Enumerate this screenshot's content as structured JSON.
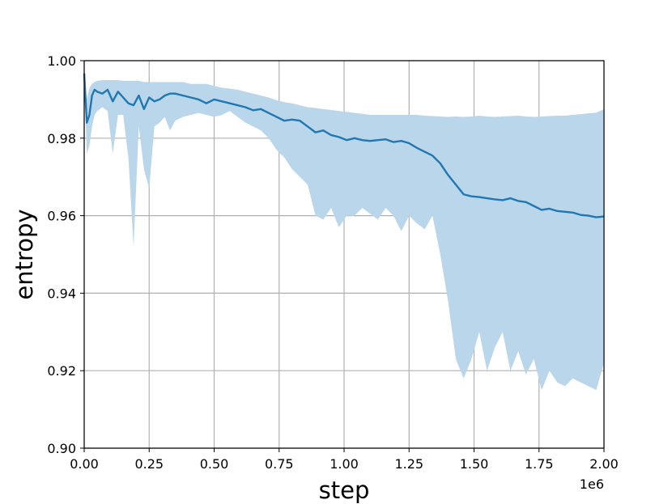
{
  "chart_data": {
    "type": "line",
    "title": "",
    "xlabel": "step",
    "ylabel": "entropy",
    "x_offset_label": "1e6",
    "xlim": [
      0.0,
      2.0
    ],
    "ylim": [
      0.9,
      1.0
    ],
    "x_ticks": [
      0.0,
      0.25,
      0.5,
      0.75,
      1.0,
      1.25,
      1.5,
      1.75,
      2.0
    ],
    "x_tick_labels": [
      "0.00",
      "0.25",
      "0.50",
      "0.75",
      "1.00",
      "1.25",
      "1.50",
      "1.75",
      "2.00"
    ],
    "y_ticks": [
      0.9,
      0.92,
      0.94,
      0.96,
      0.98,
      1.0
    ],
    "y_tick_labels": [
      "0.90",
      "0.92",
      "0.94",
      "0.96",
      "0.98",
      "1.00"
    ],
    "grid": true,
    "legend": "none",
    "colors": {
      "line": "#1f77b4",
      "band": "#bad6ea",
      "grid": "#b0b0b0"
    },
    "series": [
      {
        "x": [
          0.0,
          0.01,
          0.02,
          0.03,
          0.04,
          0.05,
          0.07,
          0.09,
          0.11,
          0.13,
          0.15,
          0.17,
          0.19,
          0.21,
          0.23,
          0.25,
          0.27,
          0.29,
          0.31,
          0.33,
          0.35,
          0.38,
          0.41,
          0.44,
          0.47,
          0.5,
          0.53,
          0.56,
          0.59,
          0.62,
          0.65,
          0.68,
          0.71,
          0.74,
          0.77,
          0.8,
          0.83,
          0.86,
          0.89,
          0.92,
          0.95,
          0.98,
          1.01,
          1.04,
          1.07,
          1.1,
          1.13,
          1.16,
          1.19,
          1.22,
          1.25,
          1.28,
          1.31,
          1.34,
          1.37,
          1.4,
          1.43,
          1.46,
          1.49,
          1.52,
          1.55,
          1.58,
          1.61,
          1.64,
          1.67,
          1.7,
          1.73,
          1.76,
          1.79,
          1.82,
          1.85,
          1.88,
          1.91,
          1.94,
          1.97,
          2.0
        ],
        "mean": [
          0.9967,
          0.984,
          0.986,
          0.991,
          0.9925,
          0.992,
          0.9915,
          0.9925,
          0.9895,
          0.992,
          0.9905,
          0.989,
          0.9885,
          0.991,
          0.9875,
          0.9905,
          0.9895,
          0.99,
          0.991,
          0.9915,
          0.9915,
          0.991,
          0.9905,
          0.99,
          0.989,
          0.99,
          0.9895,
          0.989,
          0.9885,
          0.988,
          0.9872,
          0.9875,
          0.9865,
          0.9855,
          0.9845,
          0.9848,
          0.9845,
          0.983,
          0.9815,
          0.982,
          0.9808,
          0.9803,
          0.9795,
          0.98,
          0.9795,
          0.9793,
          0.9795,
          0.9797,
          0.979,
          0.9793,
          0.9787,
          0.9775,
          0.9765,
          0.9755,
          0.9735,
          0.9705,
          0.968,
          0.9655,
          0.965,
          0.9648,
          0.9645,
          0.9642,
          0.964,
          0.9645,
          0.9638,
          0.9635,
          0.9625,
          0.9615,
          0.9618,
          0.9612,
          0.961,
          0.9608,
          0.9602,
          0.96,
          0.9596,
          0.9598
        ],
        "upper": [
          0.997,
          0.99,
          0.993,
          0.994,
          0.9945,
          0.9948,
          0.995,
          0.995,
          0.995,
          0.995,
          0.9948,
          0.9948,
          0.9948,
          0.9948,
          0.9945,
          0.9945,
          0.9945,
          0.9945,
          0.9945,
          0.9945,
          0.9945,
          0.9945,
          0.994,
          0.994,
          0.994,
          0.9935,
          0.993,
          0.9928,
          0.9925,
          0.992,
          0.9915,
          0.991,
          0.9905,
          0.9898,
          0.9893,
          0.989,
          0.9885,
          0.988,
          0.9878,
          0.9875,
          0.9873,
          0.987,
          0.9868,
          0.9865,
          0.9863,
          0.986,
          0.986,
          0.986,
          0.986,
          0.986,
          0.986,
          0.986,
          0.9858,
          0.9857,
          0.9856,
          0.9855,
          0.9856,
          0.9855,
          0.9856,
          0.9858,
          0.9856,
          0.9855,
          0.9856,
          0.9857,
          0.9858,
          0.9856,
          0.9855,
          0.9856,
          0.9857,
          0.9858,
          0.9858,
          0.986,
          0.9862,
          0.9864,
          0.9866,
          0.9875
        ],
        "lower": [
          0.996,
          0.976,
          0.978,
          0.983,
          0.986,
          0.987,
          0.988,
          0.987,
          0.976,
          0.986,
          0.986,
          0.975,
          0.952,
          0.983,
          0.972,
          0.967,
          0.983,
          0.984,
          0.9855,
          0.982,
          0.9845,
          0.9855,
          0.986,
          0.9865,
          0.986,
          0.9855,
          0.986,
          0.987,
          0.9855,
          0.984,
          0.983,
          0.982,
          0.98,
          0.977,
          0.975,
          0.972,
          0.97,
          0.968,
          0.96,
          0.959,
          0.962,
          0.957,
          0.96,
          0.96,
          0.962,
          0.9605,
          0.959,
          0.962,
          0.96,
          0.956,
          0.96,
          0.958,
          0.9565,
          0.96,
          0.95,
          0.938,
          0.923,
          0.918,
          0.923,
          0.93,
          0.92,
          0.926,
          0.93,
          0.92,
          0.925,
          0.919,
          0.923,
          0.915,
          0.92,
          0.917,
          0.916,
          0.918,
          0.917,
          0.916,
          0.915,
          0.922
        ]
      }
    ]
  }
}
